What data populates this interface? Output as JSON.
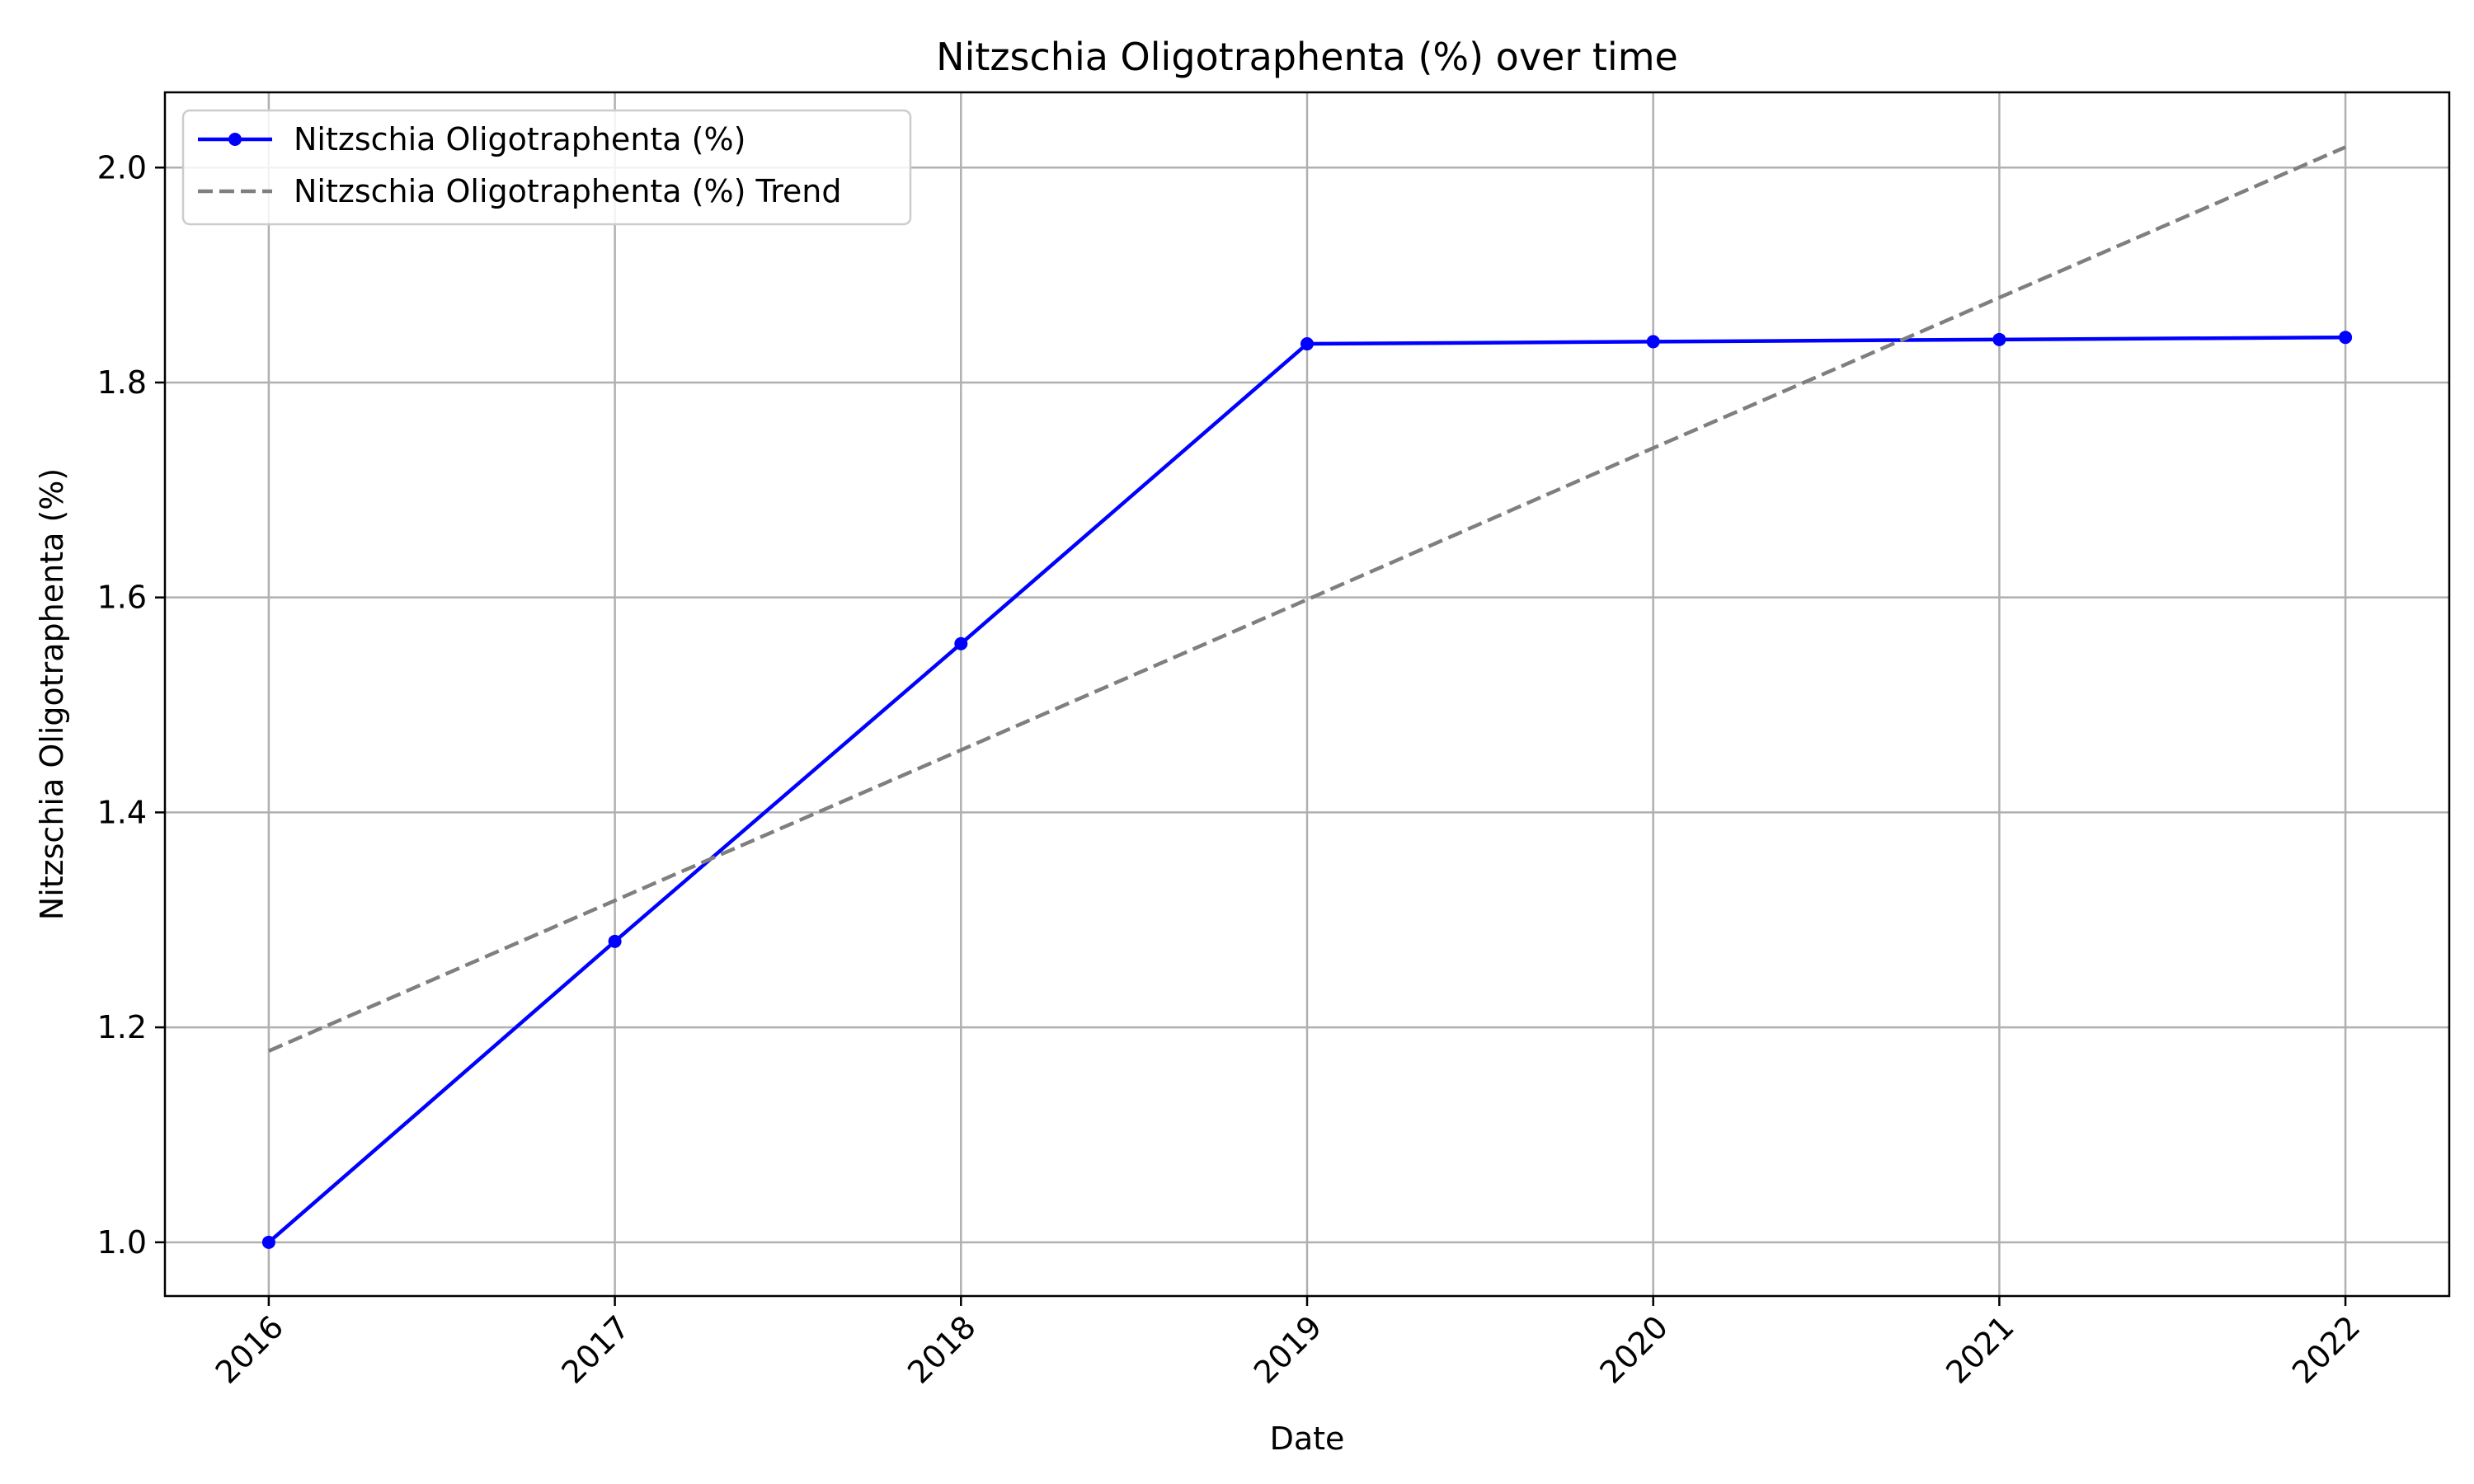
{
  "chart_data": {
    "type": "line",
    "title": "Nitzschia Oligotraphenta (%) over time",
    "xlabel": "Date",
    "ylabel": "Nitzschia Oligotraphenta (%)",
    "x": [
      "2016",
      "2017",
      "2018",
      "2019",
      "2020",
      "2021",
      "2022"
    ],
    "xlim": [
      2015.7,
      2022.3
    ],
    "ylim": [
      0.95,
      2.07
    ],
    "yticks": [
      "1.0",
      "1.2",
      "1.4",
      "1.6",
      "1.8",
      "2.0"
    ],
    "grid": true,
    "legend_position": "top-left",
    "series": [
      {
        "name": "Nitzschia Oligotraphenta (%)",
        "style": "solid",
        "marker": "dot",
        "color": "#0000ff",
        "values": [
          1.0,
          1.28,
          1.557,
          1.836,
          1.838,
          1.84,
          1.842
        ]
      },
      {
        "name": "Nitzschia Oligotraphenta (%) Trend",
        "style": "dashed",
        "marker": "none",
        "color": "#7f7f7f",
        "values": [
          1.178,
          1.318,
          1.458,
          1.598,
          1.739,
          1.879,
          2.019
        ]
      }
    ]
  }
}
